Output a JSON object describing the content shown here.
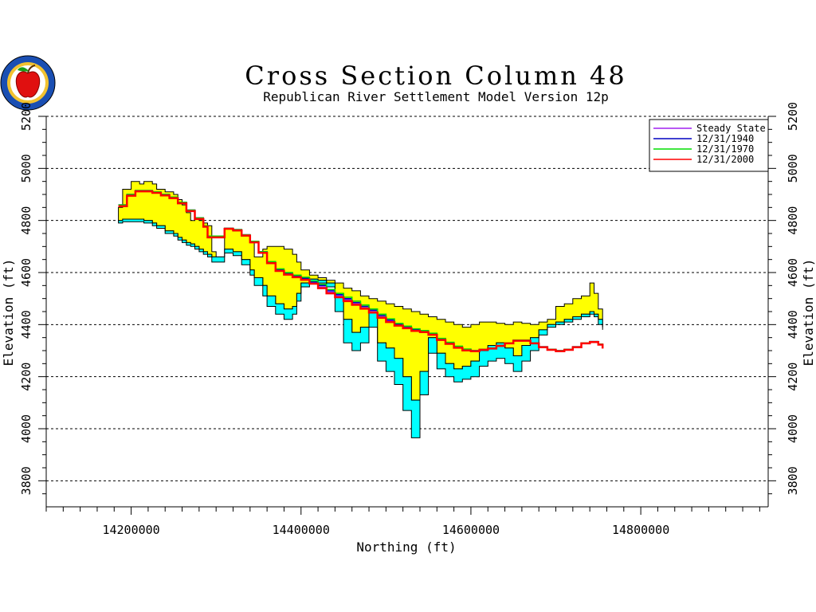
{
  "chart_data": {
    "type": "area",
    "title": "Cross Section Column 48",
    "subtitle": "Republican River Settlement Model Version 12p",
    "xlabel": "Northing (ft)",
    "ylabel": "Elevation (ft)",
    "ylabel_right": "Elevation (ft)",
    "xlim": [
      14100000,
      14950000
    ],
    "ylim": [
      3700,
      5200
    ],
    "x_ticks": [
      14200000,
      14400000,
      14600000,
      14800000
    ],
    "y_ticks": [
      3800,
      4000,
      4200,
      4400,
      4600,
      4800,
      5000,
      5200
    ],
    "grid": "horizontal dashed",
    "legend_position": "top-right",
    "legend": [
      {
        "label": "Steady State",
        "color": "#a020f0"
      },
      {
        "label": "12/31/1940",
        "color": "#0000c0"
      },
      {
        "label": "12/31/1970",
        "color": "#00dd00"
      },
      {
        "label": "12/31/2000",
        "color": "#ff0000"
      }
    ],
    "colors": {
      "saturated_layer": "#ffff00",
      "bottom_layer": "#00ffff",
      "outline": "#000000"
    },
    "land_surface": {
      "x": [
        14185000,
        14190000,
        14200000,
        14210000,
        14215000,
        14225000,
        14230000,
        14240000,
        14250000,
        14255000,
        14260000,
        14265000,
        14270000,
        14275000,
        14280000,
        14285000,
        14290000,
        14295000,
        14300000,
        14310000,
        14320000,
        14330000,
        14340000,
        14345000,
        14355000,
        14360000,
        14370000,
        14380000,
        14390000,
        14395000,
        14400000,
        14410000,
        14420000,
        14430000,
        14440000,
        14450000,
        14460000,
        14470000,
        14480000,
        14490000,
        14500000,
        14510000,
        14520000,
        14530000,
        14540000,
        14550000,
        14560000,
        14570000,
        14580000,
        14590000,
        14600000,
        14610000,
        14620000,
        14630000,
        14640000,
        14650000,
        14660000,
        14670000,
        14680000,
        14690000,
        14700000,
        14710000,
        14720000,
        14730000,
        14740000,
        14745000,
        14750000,
        14755000
      ],
      "y": [
        4850,
        4920,
        4950,
        4940,
        4950,
        4940,
        4920,
        4910,
        4900,
        4880,
        4860,
        4830,
        4800,
        4810,
        4800,
        4790,
        4780,
        4680,
        4660,
        4770,
        4760,
        4740,
        4720,
        4660,
        4690,
        4700,
        4700,
        4690,
        4670,
        4640,
        4610,
        4590,
        4580,
        4570,
        4560,
        4540,
        4530,
        4510,
        4500,
        4490,
        4480,
        4470,
        4460,
        4450,
        4440,
        4430,
        4420,
        4410,
        4400,
        4390,
        4400,
        4410,
        4410,
        4405,
        4400,
        4410,
        4405,
        4400,
        4410,
        4420,
        4470,
        4480,
        4500,
        4510,
        4560,
        4520,
        4460,
        4410
      ]
    },
    "layer_boundary": {
      "x": [
        14185000,
        14190000,
        14200000,
        14210000,
        14215000,
        14225000,
        14230000,
        14240000,
        14250000,
        14255000,
        14260000,
        14265000,
        14270000,
        14275000,
        14280000,
        14285000,
        14290000,
        14295000,
        14300000,
        14310000,
        14320000,
        14330000,
        14340000,
        14345000,
        14355000,
        14360000,
        14370000,
        14380000,
        14390000,
        14395000,
        14400000,
        14410000,
        14420000,
        14430000,
        14440000,
        14450000,
        14460000,
        14470000,
        14480000,
        14490000,
        14500000,
        14510000,
        14520000,
        14530000,
        14540000,
        14550000,
        14560000,
        14570000,
        14580000,
        14590000,
        14600000,
        14610000,
        14620000,
        14630000,
        14640000,
        14650000,
        14660000,
        14670000,
        14680000,
        14690000,
        14700000,
        14710000,
        14720000,
        14730000,
        14740000,
        14745000,
        14750000,
        14755000
      ],
      "y": [
        4800,
        4805,
        4805,
        4805,
        4800,
        4790,
        4780,
        4760,
        4750,
        4735,
        4725,
        4715,
        4710,
        4700,
        4690,
        4680,
        4670,
        4660,
        4660,
        4690,
        4680,
        4650,
        4610,
        4580,
        4550,
        4510,
        4480,
        4460,
        4470,
        4520,
        4560,
        4575,
        4570,
        4560,
        4520,
        4420,
        4370,
        4390,
        4450,
        4330,
        4310,
        4270,
        4200,
        4110,
        4220,
        4350,
        4290,
        4250,
        4230,
        4240,
        4260,
        4300,
        4320,
        4330,
        4310,
        4280,
        4320,
        4350,
        4380,
        4400,
        4410,
        4420,
        4430,
        4440,
        4450,
        4440,
        4420,
        4390
      ]
    },
    "aquifer_bottom": {
      "x": [
        14185000,
        14190000,
        14200000,
        14210000,
        14215000,
        14225000,
        14230000,
        14240000,
        14250000,
        14255000,
        14260000,
        14265000,
        14270000,
        14275000,
        14280000,
        14285000,
        14290000,
        14295000,
        14300000,
        14310000,
        14320000,
        14330000,
        14340000,
        14345000,
        14355000,
        14360000,
        14370000,
        14380000,
        14390000,
        14395000,
        14400000,
        14410000,
        14420000,
        14430000,
        14440000,
        14450000,
        14460000,
        14470000,
        14480000,
        14490000,
        14500000,
        14510000,
        14520000,
        14530000,
        14540000,
        14550000,
        14560000,
        14570000,
        14580000,
        14590000,
        14600000,
        14610000,
        14620000,
        14630000,
        14640000,
        14650000,
        14660000,
        14670000,
        14680000,
        14690000,
        14700000,
        14710000,
        14720000,
        14730000,
        14740000,
        14745000,
        14750000,
        14755000
      ],
      "y": [
        4790,
        4795,
        4795,
        4795,
        4790,
        4780,
        4770,
        4750,
        4740,
        4725,
        4715,
        4705,
        4700,
        4690,
        4680,
        4670,
        4660,
        4640,
        4640,
        4675,
        4665,
        4630,
        4590,
        4550,
        4510,
        4470,
        4440,
        4420,
        4440,
        4490,
        4545,
        4565,
        4560,
        4545,
        4450,
        4330,
        4300,
        4330,
        4390,
        4260,
        4220,
        4170,
        4070,
        3965,
        4130,
        4290,
        4230,
        4200,
        4180,
        4190,
        4200,
        4240,
        4260,
        4270,
        4250,
        4220,
        4260,
        4300,
        4360,
        4390,
        4400,
        4410,
        4420,
        4430,
        4440,
        4430,
        4400,
        4380
      ]
    },
    "series": [
      {
        "name": "Steady State",
        "x": [
          14185000,
          14195000,
          14205000,
          14215000,
          14225000,
          14235000,
          14245000,
          14255000,
          14265000,
          14275000,
          14285000,
          14290000,
          14310000,
          14320000,
          14330000,
          14340000,
          14350000,
          14360000,
          14370000,
          14380000,
          14390000,
          14400000,
          14410000,
          14420000,
          14430000,
          14440000,
          14450000,
          14460000,
          14470000,
          14480000,
          14490000,
          14500000,
          14510000,
          14520000,
          14530000,
          14540000,
          14550000,
          14560000,
          14570000,
          14580000,
          14590000,
          14600000,
          14610000,
          14620000,
          14630000,
          14640000,
          14650000,
          14660000,
          14670000,
          14680000,
          14690000,
          14700000,
          14710000,
          14720000,
          14730000,
          14740000,
          14750000,
          14755000
        ],
        "y": [
          4860,
          4900,
          4915,
          4915,
          4910,
          4900,
          4890,
          4870,
          4840,
          4810,
          4780,
          4740,
          4770,
          4765,
          4745,
          4720,
          4680,
          4640,
          4610,
          4595,
          4585,
          4575,
          4560,
          4545,
          4525,
          4510,
          4495,
          4480,
          4465,
          4450,
          4430,
          4415,
          4400,
          4390,
          4380,
          4375,
          4365,
          4345,
          4330,
          4315,
          4305,
          4300,
          4305,
          4310,
          4320,
          4330,
          4340,
          4340,
          4330,
          4315,
          4305,
          4300,
          4305,
          4315,
          4330,
          4335,
          4325,
          4310
        ]
      },
      {
        "name": "12/31/1940",
        "x": [
          14185000,
          14195000,
          14205000,
          14215000,
          14225000,
          14235000,
          14245000,
          14255000,
          14265000,
          14275000,
          14285000,
          14290000,
          14310000,
          14320000,
          14330000,
          14340000,
          14350000,
          14360000,
          14370000,
          14380000,
          14390000,
          14400000,
          14410000,
          14420000,
          14430000,
          14440000,
          14450000,
          14460000,
          14470000,
          14480000,
          14490000,
          14500000,
          14510000,
          14520000,
          14530000,
          14540000,
          14550000,
          14560000,
          14570000,
          14580000,
          14590000,
          14600000,
          14610000,
          14620000,
          14630000,
          14640000,
          14650000,
          14660000,
          14670000,
          14680000,
          14690000,
          14700000,
          14710000,
          14720000,
          14730000,
          14740000,
          14750000,
          14755000
        ],
        "y": [
          4860,
          4900,
          4915,
          4915,
          4910,
          4900,
          4890,
          4870,
          4840,
          4810,
          4780,
          4740,
          4770,
          4765,
          4745,
          4720,
          4680,
          4640,
          4610,
          4597,
          4587,
          4578,
          4564,
          4550,
          4530,
          4515,
          4500,
          4485,
          4470,
          4455,
          4435,
          4418,
          4402,
          4392,
          4382,
          4376,
          4366,
          4346,
          4331,
          4316,
          4305,
          4300,
          4305,
          4310,
          4320,
          4330,
          4340,
          4340,
          4330,
          4315,
          4305,
          4300,
          4305,
          4315,
          4330,
          4335,
          4325,
          4310
        ]
      },
      {
        "name": "12/31/1970",
        "x": [
          14185000,
          14195000,
          14205000,
          14215000,
          14225000,
          14235000,
          14245000,
          14255000,
          14265000,
          14275000,
          14285000,
          14290000,
          14310000,
          14320000,
          14330000,
          14340000,
          14350000,
          14360000,
          14370000,
          14380000,
          14390000,
          14400000,
          14410000,
          14420000,
          14430000,
          14440000,
          14450000,
          14460000,
          14470000,
          14480000,
          14490000,
          14500000,
          14510000,
          14520000,
          14530000,
          14540000,
          14550000,
          14560000,
          14570000,
          14580000,
          14590000,
          14600000,
          14610000,
          14620000,
          14630000,
          14640000,
          14650000,
          14660000,
          14670000,
          14680000,
          14690000,
          14700000,
          14710000,
          14720000,
          14730000,
          14740000,
          14750000,
          14755000
        ],
        "y": [
          4860,
          4900,
          4915,
          4915,
          4910,
          4900,
          4890,
          4870,
          4840,
          4810,
          4780,
          4740,
          4770,
          4765,
          4745,
          4720,
          4680,
          4642,
          4614,
          4600,
          4590,
          4582,
          4568,
          4555,
          4535,
          4520,
          4505,
          4490,
          4475,
          4460,
          4440,
          4422,
          4405,
          4394,
          4384,
          4377,
          4367,
          4347,
          4332,
          4317,
          4306,
          4300,
          4305,
          4310,
          4320,
          4330,
          4340,
          4340,
          4330,
          4315,
          4305,
          4300,
          4305,
          4315,
          4330,
          4335,
          4325,
          4310
        ]
      },
      {
        "name": "12/31/2000",
        "x": [
          14185000,
          14195000,
          14205000,
          14215000,
          14225000,
          14235000,
          14245000,
          14255000,
          14265000,
          14275000,
          14285000,
          14290000,
          14310000,
          14320000,
          14330000,
          14340000,
          14350000,
          14360000,
          14370000,
          14380000,
          14390000,
          14400000,
          14410000,
          14420000,
          14430000,
          14440000,
          14450000,
          14460000,
          14470000,
          14480000,
          14490000,
          14500000,
          14510000,
          14520000,
          14530000,
          14540000,
          14550000,
          14560000,
          14570000,
          14580000,
          14590000,
          14600000,
          14610000,
          14620000,
          14630000,
          14640000,
          14650000,
          14660000,
          14670000,
          14680000,
          14690000,
          14700000,
          14710000,
          14720000,
          14730000,
          14740000,
          14750000,
          14755000
        ],
        "y": [
          4855,
          4895,
          4912,
          4912,
          4906,
          4896,
          4886,
          4866,
          4836,
          4806,
          4776,
          4735,
          4768,
          4762,
          4742,
          4716,
          4676,
          4636,
          4606,
          4592,
          4582,
          4572,
          4557,
          4540,
          4520,
          4505,
          4490,
          4476,
          4461,
          4446,
          4426,
          4410,
          4396,
          4386,
          4376,
          4371,
          4361,
          4341,
          4326,
          4311,
          4301,
          4298,
          4303,
          4308,
          4318,
          4328,
          4338,
          4338,
          4328,
          4313,
          4303,
          4298,
          4303,
          4313,
          4328,
          4333,
          4323,
          4308
        ]
      }
    ]
  }
}
